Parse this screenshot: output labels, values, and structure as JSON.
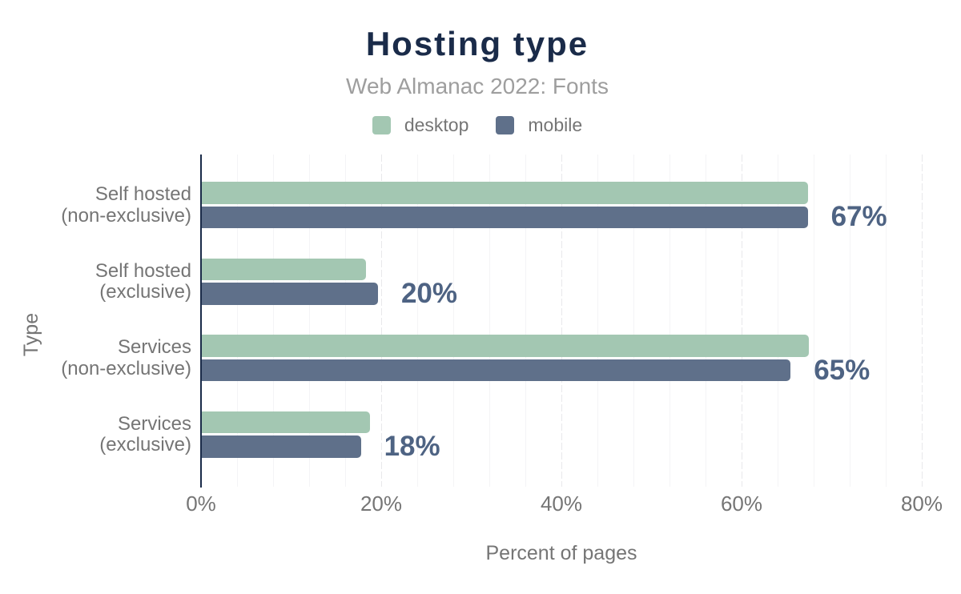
{
  "chart_data": {
    "type": "bar",
    "orientation": "horizontal",
    "title": "Hosting type",
    "subtitle": "Web Almanac 2022: Fonts",
    "xlabel": "Percent of pages",
    "ylabel": "Type",
    "xlim": [
      0,
      80
    ],
    "x_ticks": [
      {
        "value": 0,
        "label": "0%"
      },
      {
        "value": 20,
        "label": "20%"
      },
      {
        "value": 40,
        "label": "40%"
      },
      {
        "value": 60,
        "label": "60%"
      },
      {
        "value": 80,
        "label": "80%"
      }
    ],
    "minor_gridline_step_percent": 4,
    "grid": true,
    "legend_position": "top",
    "categories": [
      {
        "line1": "Self hosted",
        "line2": "(non-exclusive)"
      },
      {
        "line1": "Self hosted",
        "line2": "(exclusive)"
      },
      {
        "line1": "Services",
        "line2": "(non-exclusive)"
      },
      {
        "line1": "Services",
        "line2": "(exclusive)"
      }
    ],
    "series": [
      {
        "name": "desktop",
        "color": "#a3c7b2",
        "values": [
          67.3,
          18.3,
          67.4,
          18.7
        ]
      },
      {
        "name": "mobile",
        "color": "#5f708a",
        "values": [
          67.3,
          19.6,
          65.4,
          17.7
        ]
      }
    ],
    "value_labels": [
      "67%",
      "20%",
      "65%",
      "18%"
    ],
    "value_labels_series": "mobile",
    "colors": {
      "title": "#1a2b49",
      "subtitle": "#9e9e9e",
      "axis_text": "#757575",
      "legend_text": "#757575",
      "axis_line": "#1a2b49",
      "value_label": "#4e6383",
      "gridline_minor": "#f4f4f6",
      "gridline_major": "#e8e8eb",
      "background": "#ffffff"
    }
  }
}
